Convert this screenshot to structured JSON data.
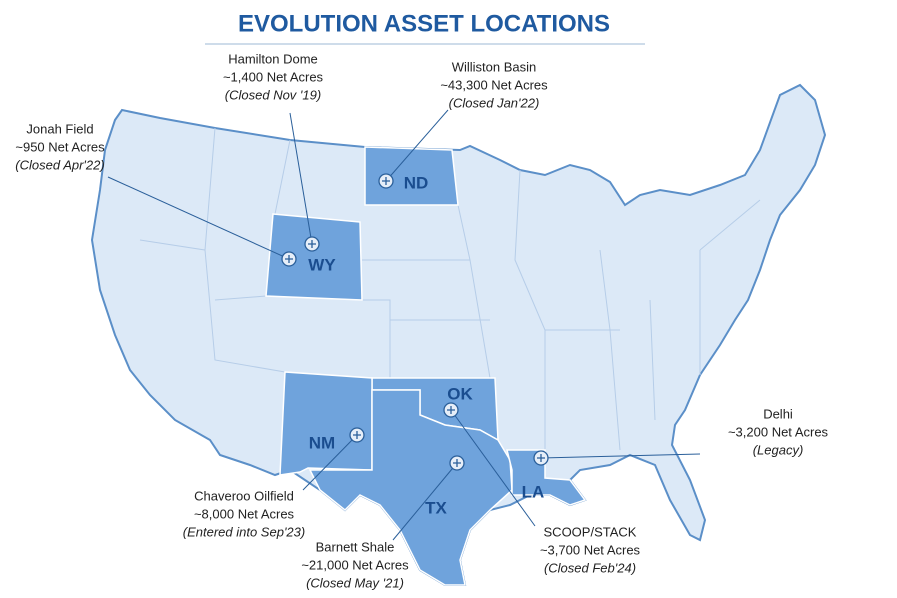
{
  "header": {
    "title": "EVOLUTION ASSET LOCATIONS"
  },
  "states": [
    "ND",
    "WY",
    "OK",
    "NM",
    "TX",
    "LA"
  ],
  "assets": [
    {
      "name": "Jonah Field",
      "acres": "~950 Net Acres",
      "status": "(Closed Apr'22)"
    },
    {
      "name": "Hamilton Dome",
      "acres": "~1,400 Net Acres",
      "status": "(Closed Nov '19)"
    },
    {
      "name": "Williston Basin",
      "acres": "~43,300 Net Acres",
      "status": "(Closed Jan'22)"
    },
    {
      "name": "Delhi",
      "acres": "~3,200 Net Acres",
      "status": "(Legacy)"
    },
    {
      "name": "Chaveroo Oilfield",
      "acres": "~8,000 Net Acres",
      "status": "(Entered into Sep'23)"
    },
    {
      "name": "Barnett Shale",
      "acres": "~21,000 Net Acres",
      "status": "(Closed May '21)"
    },
    {
      "name": "SCOOP/STACK",
      "acres": "~3,700 Net Acres",
      "status": "(Closed Feb'24)"
    }
  ]
}
